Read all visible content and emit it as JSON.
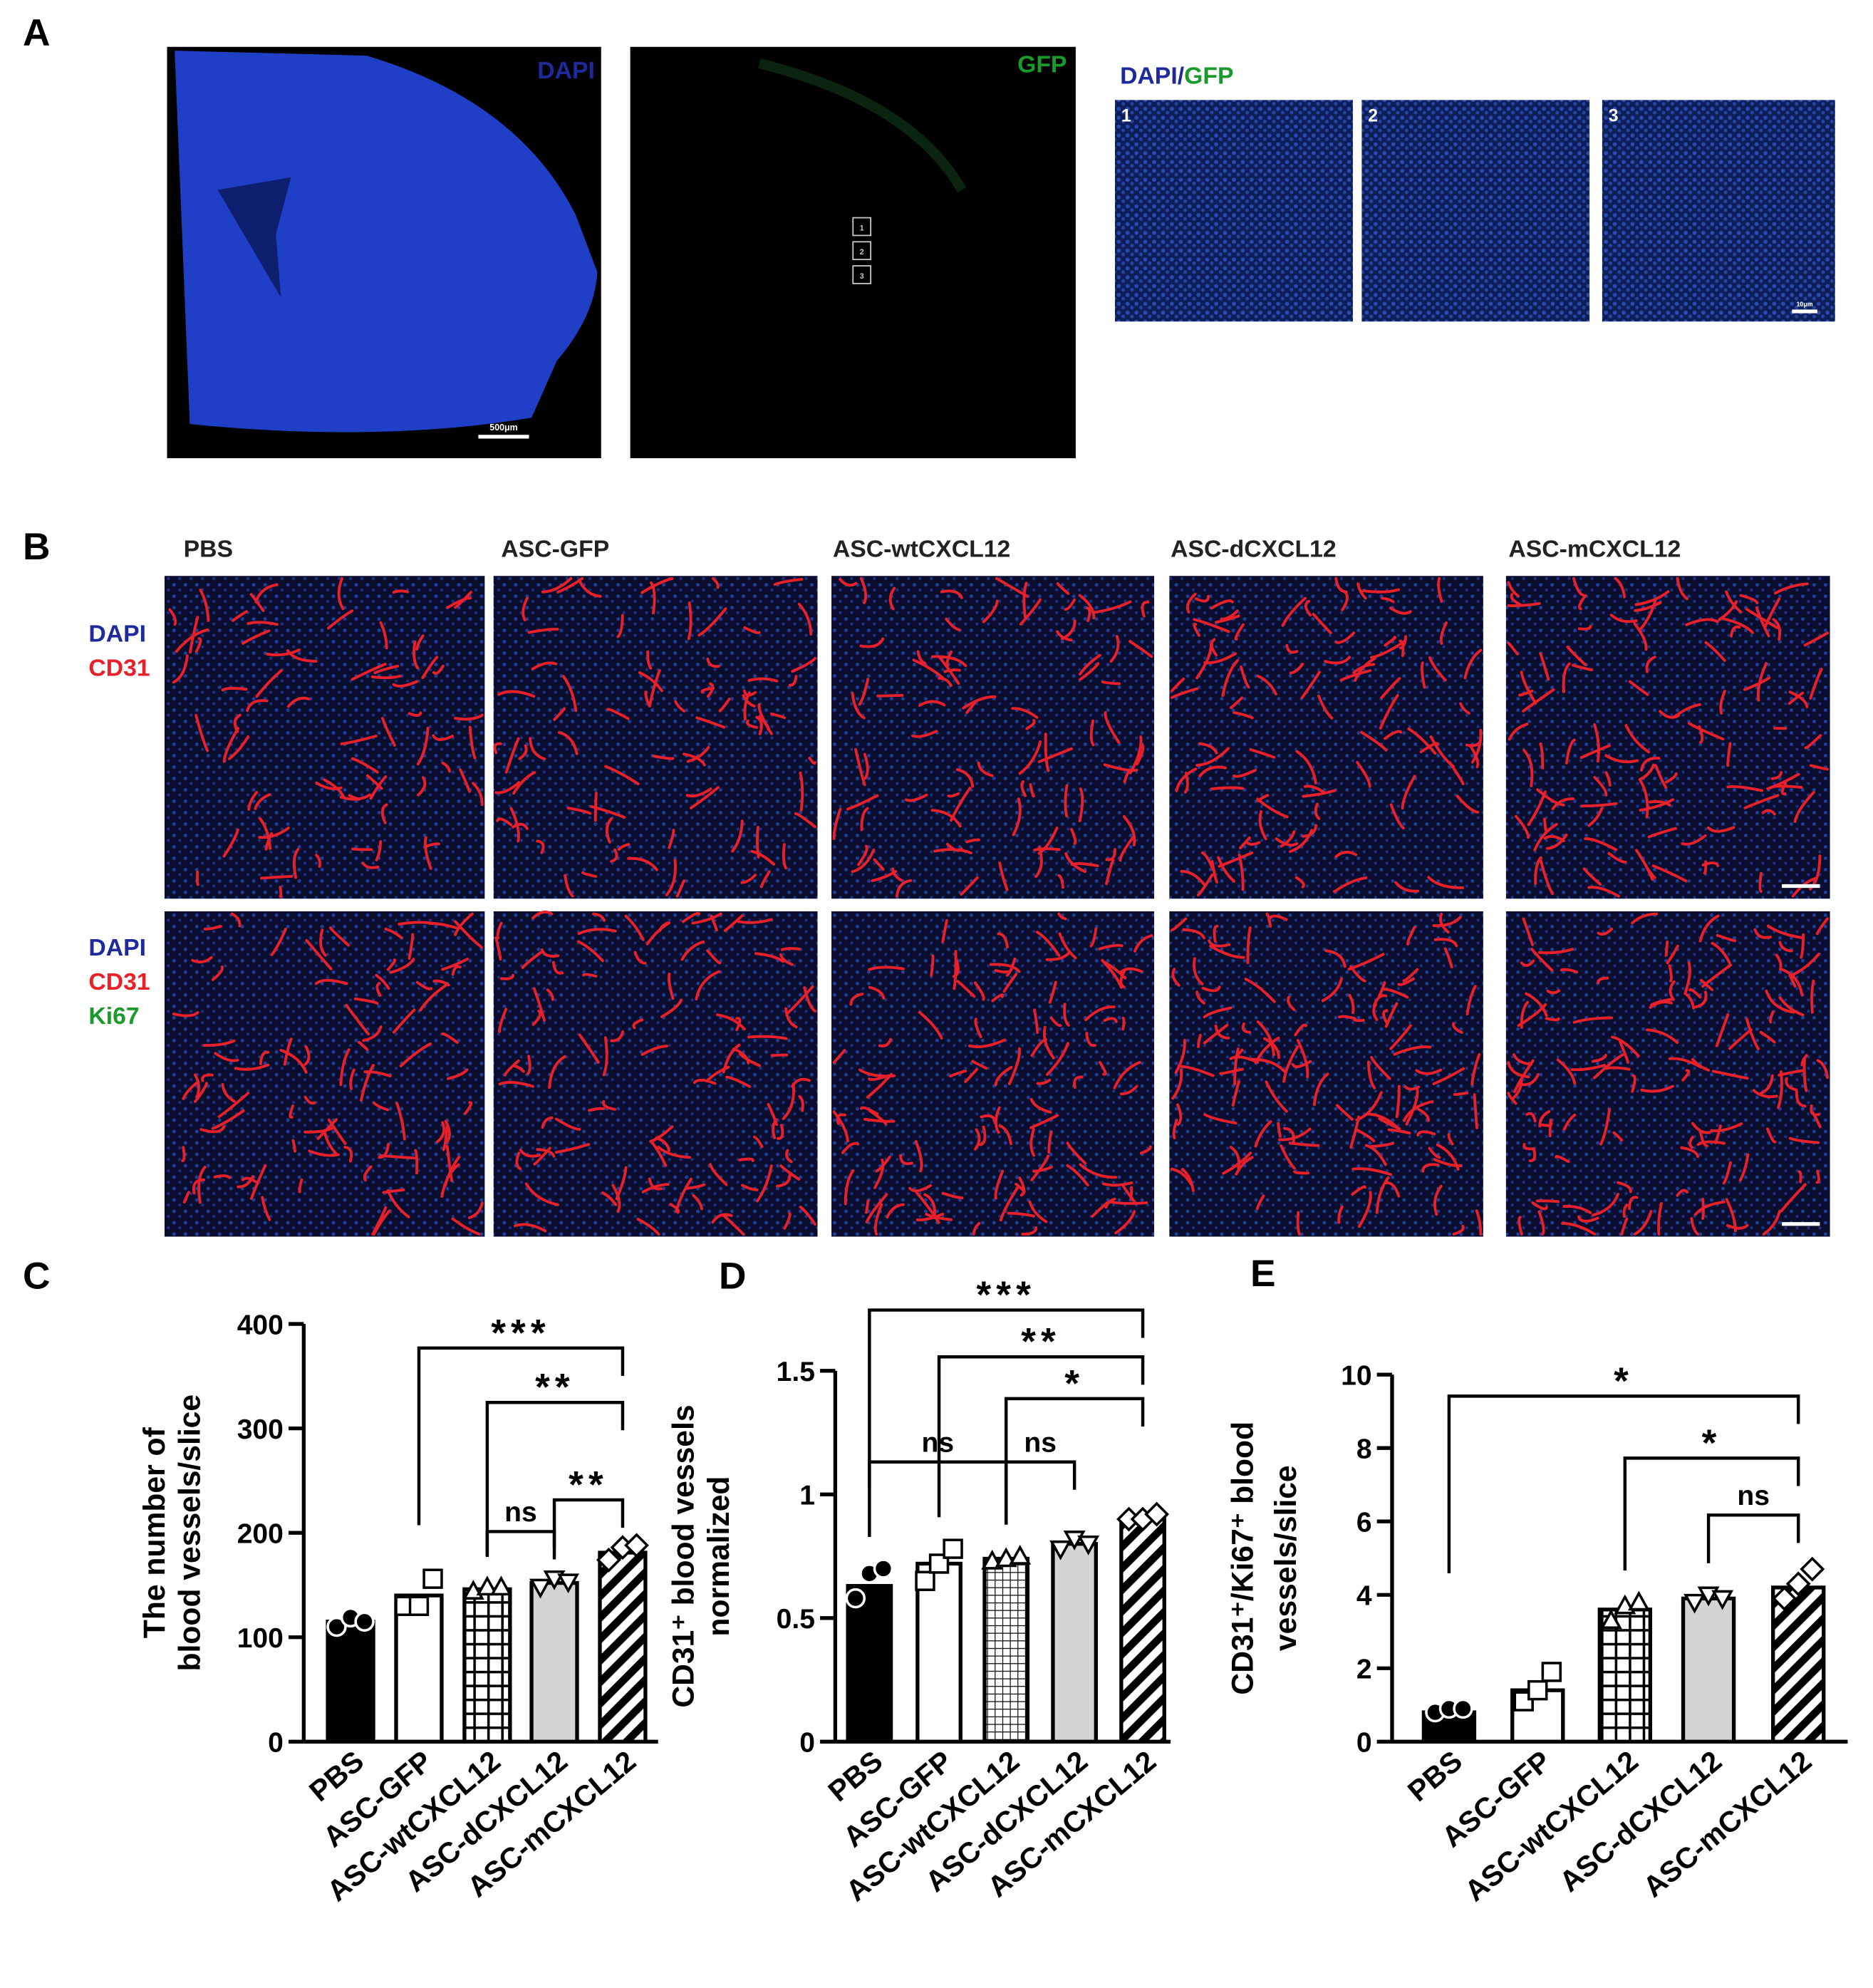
{
  "panel_a": {
    "label": "A",
    "dapi_image": {
      "channel": "DAPI",
      "scale": "500μm"
    },
    "gfp_image": {
      "channel": "GFP",
      "boxes": [
        "1",
        "2",
        "3"
      ]
    },
    "merge_title": [
      "DAPI",
      "/",
      "GFP"
    ],
    "insets": [
      "1",
      "2",
      "3"
    ],
    "inset_scale": "10μm"
  },
  "panel_b": {
    "label": "B",
    "columns": [
      "PBS",
      "ASC-GFP",
      "ASC-wtCXCL12",
      "ASC-dCXCL12",
      "ASC-mCXCL12"
    ],
    "row_labels": [
      [
        "DAPI",
        "CD31"
      ],
      [
        "DAPI",
        "CD31",
        "Ki67"
      ]
    ]
  },
  "chart_data": [
    {
      "type": "bar",
      "panel": "C",
      "ylabel": [
        "The number of",
        "blood vessels/slice"
      ],
      "categories": [
        "PBS",
        "ASC-GFP",
        "ASC-wtCXCL12",
        "ASC-dCXCL12",
        "ASC-mCXCL12"
      ],
      "values": [
        115,
        140,
        146,
        152,
        181
      ],
      "points": [
        [
          110,
          119,
          115
        ],
        [
          130,
          130,
          156
        ],
        [
          144,
          148,
          148
        ],
        [
          148,
          156,
          153
        ],
        [
          174,
          186,
          188
        ]
      ],
      "bar_styles": [
        "black",
        "white",
        "grid",
        "gray",
        "hatch"
      ],
      "markers": [
        "circle",
        "square",
        "triangle",
        "triangle-down",
        "diamond"
      ],
      "ylim": [
        0,
        400
      ],
      "yticks": [
        0,
        100,
        200,
        300,
        400
      ],
      "comparisons": [
        {
          "groups": [
            1,
            4
          ],
          "label": "***"
        },
        {
          "groups": [
            2,
            4
          ],
          "label": "**"
        },
        {
          "groups": [
            3,
            4
          ],
          "label": "**"
        },
        {
          "groups": [
            2,
            3
          ],
          "label": "ns"
        }
      ]
    },
    {
      "type": "bar",
      "panel": "D",
      "ylabel": [
        "CD31⁺ blood vessels",
        "normalized"
      ],
      "categories": [
        "PBS",
        "ASC-GFP",
        "ASC-wtCXCL12",
        "ASC-dCXCL12",
        "ASC-mCXCL12"
      ],
      "values": [
        0.63,
        0.72,
        0.74,
        0.8,
        0.9
      ],
      "points": [
        [
          0.58,
          0.68,
          0.7
        ],
        [
          0.65,
          0.72,
          0.78
        ],
        [
          0.73,
          0.74,
          0.75
        ],
        [
          0.78,
          0.82,
          0.8
        ],
        [
          0.9,
          0.9,
          0.92
        ]
      ],
      "bar_styles": [
        "black",
        "white",
        "crosshatch",
        "gray",
        "hatch"
      ],
      "markers": [
        "circle",
        "square",
        "triangle",
        "triangle-down",
        "diamond"
      ],
      "ylim": [
        0,
        1.5
      ],
      "yticks": [
        0,
        0.5,
        1,
        1.5
      ],
      "comparisons": [
        {
          "groups": [
            0,
            4
          ],
          "label": "***"
        },
        {
          "groups": [
            1,
            4
          ],
          "label": "**"
        },
        {
          "groups": [
            2,
            4
          ],
          "label": "*"
        },
        {
          "groups": [
            0,
            2
          ],
          "label": "ns"
        },
        {
          "groups": [
            2,
            3
          ],
          "label": "ns"
        }
      ]
    },
    {
      "type": "bar",
      "panel": "E",
      "ylabel": [
        "CD31⁺/Ki67⁺ blood",
        "vessels/slice"
      ],
      "categories": [
        "PBS",
        "ASC-GFP",
        "ASC-wtCXCL12",
        "ASC-dCXCL12",
        "ASC-mCXCL12"
      ],
      "values": [
        0.8,
        1.4,
        3.6,
        3.9,
        4.2
      ],
      "points": [
        [
          0.8,
          0.9,
          0.9
        ],
        [
          1.1,
          1.4,
          1.9
        ],
        [
          3.3,
          3.7,
          3.8
        ],
        [
          3.8,
          4.0,
          3.9
        ],
        [
          3.9,
          4.3,
          4.7
        ]
      ],
      "bar_styles": [
        "black",
        "white",
        "grid",
        "gray",
        "hatch"
      ],
      "markers": [
        "circle",
        "square",
        "triangle",
        "triangle-down",
        "diamond"
      ],
      "ylim": [
        0,
        10
      ],
      "yticks": [
        0,
        2,
        4,
        6,
        8,
        10
      ],
      "comparisons": [
        {
          "groups": [
            0,
            4
          ],
          "label": "*"
        },
        {
          "groups": [
            2,
            4
          ],
          "label": "*"
        },
        {
          "groups": [
            3,
            4
          ],
          "label": "ns"
        }
      ]
    }
  ]
}
